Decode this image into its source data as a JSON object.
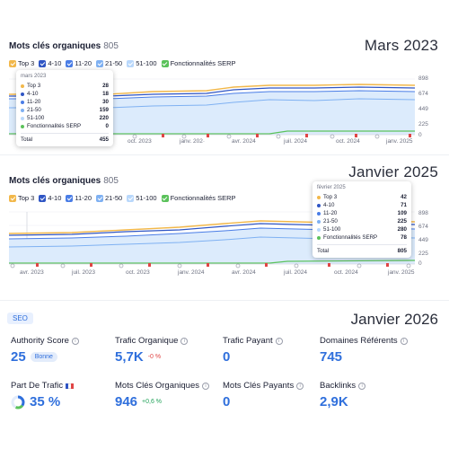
{
  "colors": {
    "top3": "#f2b84b",
    "p4_10": "#2f55c4",
    "p11_20": "#4a7de6",
    "p21_50": "#7fb1f2",
    "p51_100": "#b9d8fb",
    "serp": "#5bc25b",
    "accent": "#2f6fdc"
  },
  "panel1": {
    "title": "Mots clés organiques",
    "count": "805",
    "heading": "Mars 2023",
    "legend": [
      "Top 3",
      "4-10",
      "11-20",
      "21-50",
      "51-100",
      "Fonctionnalités SERP"
    ],
    "yticks": [
      "898",
      "674",
      "449",
      "225",
      "0"
    ],
    "xticks": [
      "oct. 2023",
      "janv. 202·",
      "avr. 2024",
      "juil. 2024",
      "oct. 2024",
      "janv. 2025"
    ],
    "tooltip": {
      "date": "mars 2023",
      "rows": [
        {
          "label": "Top 3",
          "value": "28"
        },
        {
          "label": "4-10",
          "value": "18"
        },
        {
          "label": "11-20",
          "value": "30"
        },
        {
          "label": "21-50",
          "value": "159"
        },
        {
          "label": "51-100",
          "value": "220"
        },
        {
          "label": "Fonctionnalités SERP",
          "value": "0"
        }
      ],
      "total_label": "Total",
      "total_value": "455"
    }
  },
  "panel2": {
    "title": "Mots clés organiques",
    "count": "805",
    "heading": "Janvier 2025",
    "legend": [
      "Top 3",
      "4-10",
      "11-20",
      "21-50",
      "51-100",
      "Fonctionnalités SERP"
    ],
    "yticks": [
      "898",
      "674",
      "449",
      "225",
      "0"
    ],
    "xticks": [
      "avr. 2023",
      "juil. 2023",
      "oct. 2023",
      "janv. 2024",
      "avr. 2024",
      "juil. 2024",
      "oct. 2024",
      "janv. 2025"
    ],
    "tooltip": {
      "date": "février 2025",
      "rows": [
        {
          "label": "Top 3",
          "value": "42"
        },
        {
          "label": "4-10",
          "value": "71"
        },
        {
          "label": "11-20",
          "value": "109"
        },
        {
          "label": "21-50",
          "value": "225"
        },
        {
          "label": "51-100",
          "value": "280"
        },
        {
          "label": "Fonctionnalités SERP",
          "value": "78"
        }
      ],
      "total_label": "Total",
      "total_value": "805"
    }
  },
  "seo": {
    "badge": "SEO",
    "heading": "Janvier 2026",
    "metrics": [
      {
        "label": "Authority Score",
        "value": "25",
        "pill": "Bonne"
      },
      {
        "label": "Trafic Organique",
        "value": "5,7K",
        "delta": "-0 %"
      },
      {
        "label": "Trafic Payant",
        "value": "0"
      },
      {
        "label": "Domaines Référents",
        "value": "745"
      },
      {
        "label": "Part De Trafic",
        "value": "35 %"
      },
      {
        "label": "Mots Clés Organiques",
        "value": "946",
        "delta": "+0,6 %"
      },
      {
        "label": "Mots Clés Payants",
        "value": "0"
      },
      {
        "label": "Backlinks",
        "value": "2,9K"
      }
    ]
  }
}
